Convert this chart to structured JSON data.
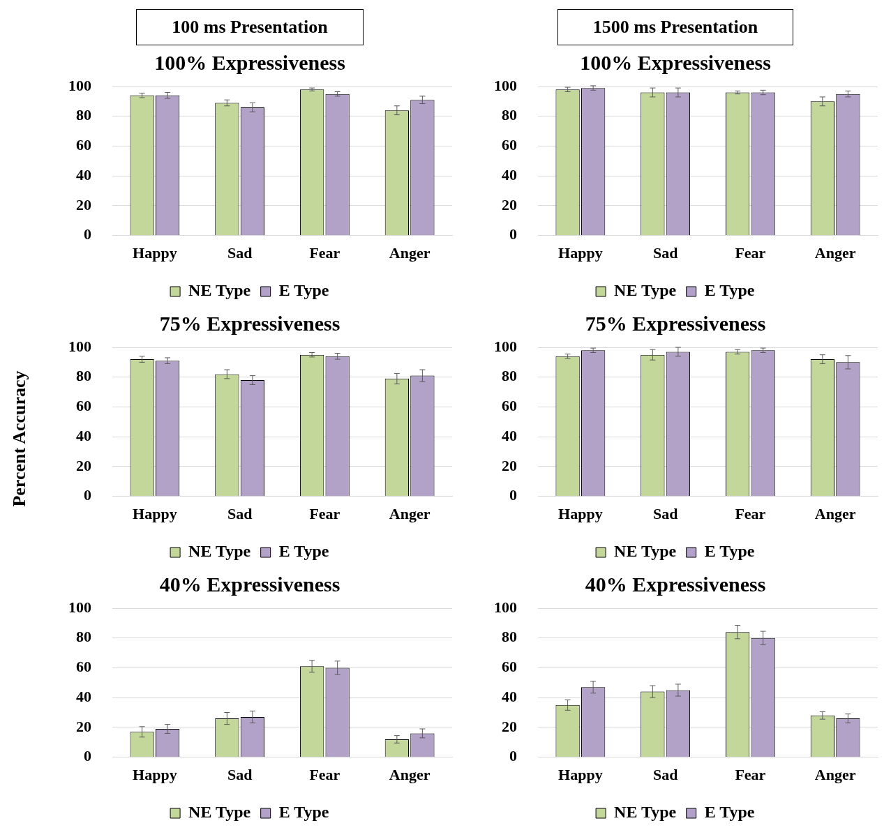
{
  "chart_data": [
    {
      "type": "bar",
      "subtitle": "100 ms Presentation",
      "title": "100% Expressiveness",
      "categories": [
        "Happy",
        "Sad",
        "Fear",
        "Anger"
      ],
      "ylim": [
        0,
        100
      ],
      "yticks": [
        0,
        20,
        40,
        60,
        80,
        100
      ],
      "grid": "y",
      "legend": "bottom",
      "series": [
        {
          "name": "NE Type",
          "color": "#c4d79b",
          "values": [
            94,
            89,
            98,
            84
          ],
          "errors": [
            1.5,
            2,
            1,
            3
          ]
        },
        {
          "name": "E Type",
          "color": "#b3a2c7",
          "values": [
            94,
            86,
            95,
            91
          ],
          "errors": [
            2,
            3,
            1.5,
            2.5
          ]
        }
      ]
    },
    {
      "type": "bar",
      "subtitle": "1500 ms Presentation",
      "title": "100% Expressiveness",
      "categories": [
        "Happy",
        "Sad",
        "Fear",
        "Anger"
      ],
      "ylim": [
        0,
        100
      ],
      "yticks": [
        0,
        20,
        40,
        60,
        80,
        100
      ],
      "grid": "y",
      "legend": "bottom",
      "series": [
        {
          "name": "NE Type",
          "color": "#c4d79b",
          "values": [
            98,
            96,
            96,
            90
          ],
          "errors": [
            1.5,
            3,
            1,
            3
          ]
        },
        {
          "name": "E Type",
          "color": "#b3a2c7",
          "values": [
            99,
            96,
            96,
            95
          ],
          "errors": [
            1.5,
            3,
            1.5,
            2
          ]
        }
      ]
    },
    {
      "type": "bar",
      "title": "75% Expressiveness",
      "ylabel": "Percent Accuracy",
      "categories": [
        "Happy",
        "Sad",
        "Fear",
        "Anger"
      ],
      "ylim": [
        0,
        100
      ],
      "yticks": [
        0,
        20,
        40,
        60,
        80,
        100
      ],
      "grid": "y",
      "legend": "bottom",
      "series": [
        {
          "name": "NE Type",
          "color": "#c4d79b",
          "values": [
            92,
            82,
            95,
            79
          ],
          "errors": [
            2,
            3,
            1.5,
            3.5
          ]
        },
        {
          "name": "E Type",
          "color": "#b3a2c7",
          "values": [
            91,
            78,
            94,
            81
          ],
          "errors": [
            2,
            3,
            2,
            4
          ]
        }
      ]
    },
    {
      "type": "bar",
      "title": "75% Expressiveness",
      "categories": [
        "Happy",
        "Sad",
        "Fear",
        "Anger"
      ],
      "ylim": [
        0,
        100
      ],
      "yticks": [
        0,
        20,
        40,
        60,
        80,
        100
      ],
      "grid": "y",
      "legend": "bottom",
      "series": [
        {
          "name": "NE Type",
          "color": "#c4d79b",
          "values": [
            94,
            95,
            97,
            92
          ],
          "errors": [
            1.5,
            3.5,
            1.5,
            3
          ]
        },
        {
          "name": "E Type",
          "color": "#b3a2c7",
          "values": [
            98,
            97,
            98,
            90
          ],
          "errors": [
            1.5,
            3,
            1.5,
            4.5
          ]
        }
      ]
    },
    {
      "type": "bar",
      "title": "40% Expressiveness",
      "categories": [
        "Happy",
        "Sad",
        "Fear",
        "Anger"
      ],
      "ylim": [
        0,
        100
      ],
      "yticks": [
        0,
        20,
        40,
        60,
        80,
        100
      ],
      "grid": "y",
      "legend": "bottom",
      "series": [
        {
          "name": "NE Type",
          "color": "#c4d79b",
          "values": [
            17,
            26,
            61,
            12
          ],
          "errors": [
            3.5,
            4,
            4,
            2.5
          ]
        },
        {
          "name": "E Type",
          "color": "#b3a2c7",
          "values": [
            19,
            27,
            60,
            16
          ],
          "errors": [
            3,
            4,
            4.5,
            3
          ]
        }
      ]
    },
    {
      "type": "bar",
      "title": "40% Expressiveness",
      "categories": [
        "Happy",
        "Sad",
        "Fear",
        "Anger"
      ],
      "ylim": [
        0,
        100
      ],
      "yticks": [
        0,
        20,
        40,
        60,
        80,
        100
      ],
      "grid": "y",
      "legend": "bottom",
      "series": [
        {
          "name": "NE Type",
          "color": "#c4d79b",
          "values": [
            35,
            44,
            84,
            28
          ],
          "errors": [
            3.5,
            4,
            4.5,
            2.5
          ]
        },
        {
          "name": "E Type",
          "color": "#b3a2c7",
          "values": [
            47,
            45,
            80,
            26
          ],
          "errors": [
            4,
            4,
            4.5,
            3
          ]
        }
      ]
    }
  ]
}
